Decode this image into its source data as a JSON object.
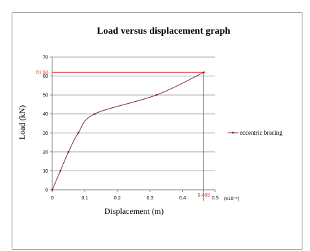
{
  "chart_data": {
    "type": "line",
    "title": "Load versus displacement graph",
    "xlabel": "Displacement (m)",
    "ylabel": "Load (kN)",
    "x_unit_note": "(x10⁻³)",
    "xlim": [
      0,
      0.5
    ],
    "ylim": [
      0,
      70
    ],
    "x_ticks": [
      "0",
      "0.1",
      "0.2",
      "0.3",
      "0.4",
      "0.5"
    ],
    "y_ticks": [
      "0",
      "10",
      "20",
      "30",
      "40",
      "50",
      "60",
      "70"
    ],
    "grid": true,
    "legend_position": "right",
    "series": [
      {
        "name": "eccentric bracing",
        "color": "#7a2a3a",
        "x": [
          0,
          0.025,
          0.05,
          0.08,
          0.13,
          0.32,
          0.465
        ],
        "y": [
          0,
          10,
          20,
          30,
          40,
          50,
          61.94
        ]
      }
    ],
    "annotations": {
      "peak_load_label": "61.94",
      "peak_disp_label": "0.465",
      "peak_x": 0.465,
      "peak_y": 61.94,
      "color": "#e03030"
    }
  }
}
